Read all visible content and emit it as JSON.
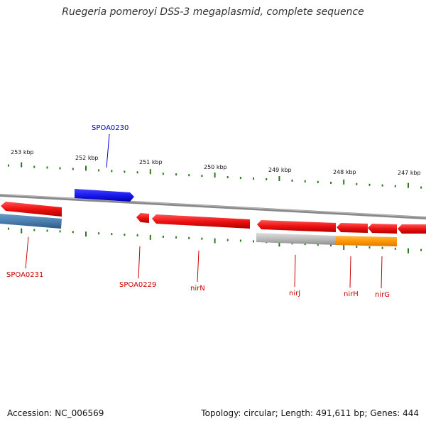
{
  "title": "Ruegeria pomeroyi DSS-3 megaplasmid, complete sequence",
  "footer": {
    "accession": "Accession: NC_006569",
    "summary": "Topology: circular; Length: 491,611 bp; Genes: 444"
  },
  "ruler": {
    "labels": [
      "253 kbp",
      "252 kbp",
      "251 kbp",
      "250 kbp",
      "249 kbp",
      "248 kbp",
      "247 kbp"
    ]
  },
  "colors": {
    "forward_gene": "#1a1aee",
    "reverse_gene": "#ee1111",
    "blue_feature": "#4a7fb0",
    "orange_feature": "#ff9900",
    "grey_feature": "#bbbbbb",
    "backbone": "#888888",
    "tick": "#2a7a1a",
    "label_red": "#cc0000",
    "label_blue": "#0000cc"
  },
  "genes": [
    {
      "name": "SPOA0230",
      "strand": "forward"
    },
    {
      "name": "SPOA0231",
      "strand": "reverse"
    },
    {
      "name": "SPOA0229",
      "strand": "reverse"
    },
    {
      "name": "nirN",
      "strand": "reverse"
    },
    {
      "name": "nirJ",
      "strand": "reverse"
    },
    {
      "name": "nirH",
      "strand": "reverse"
    },
    {
      "name": "nirG",
      "strand": "reverse"
    }
  ]
}
